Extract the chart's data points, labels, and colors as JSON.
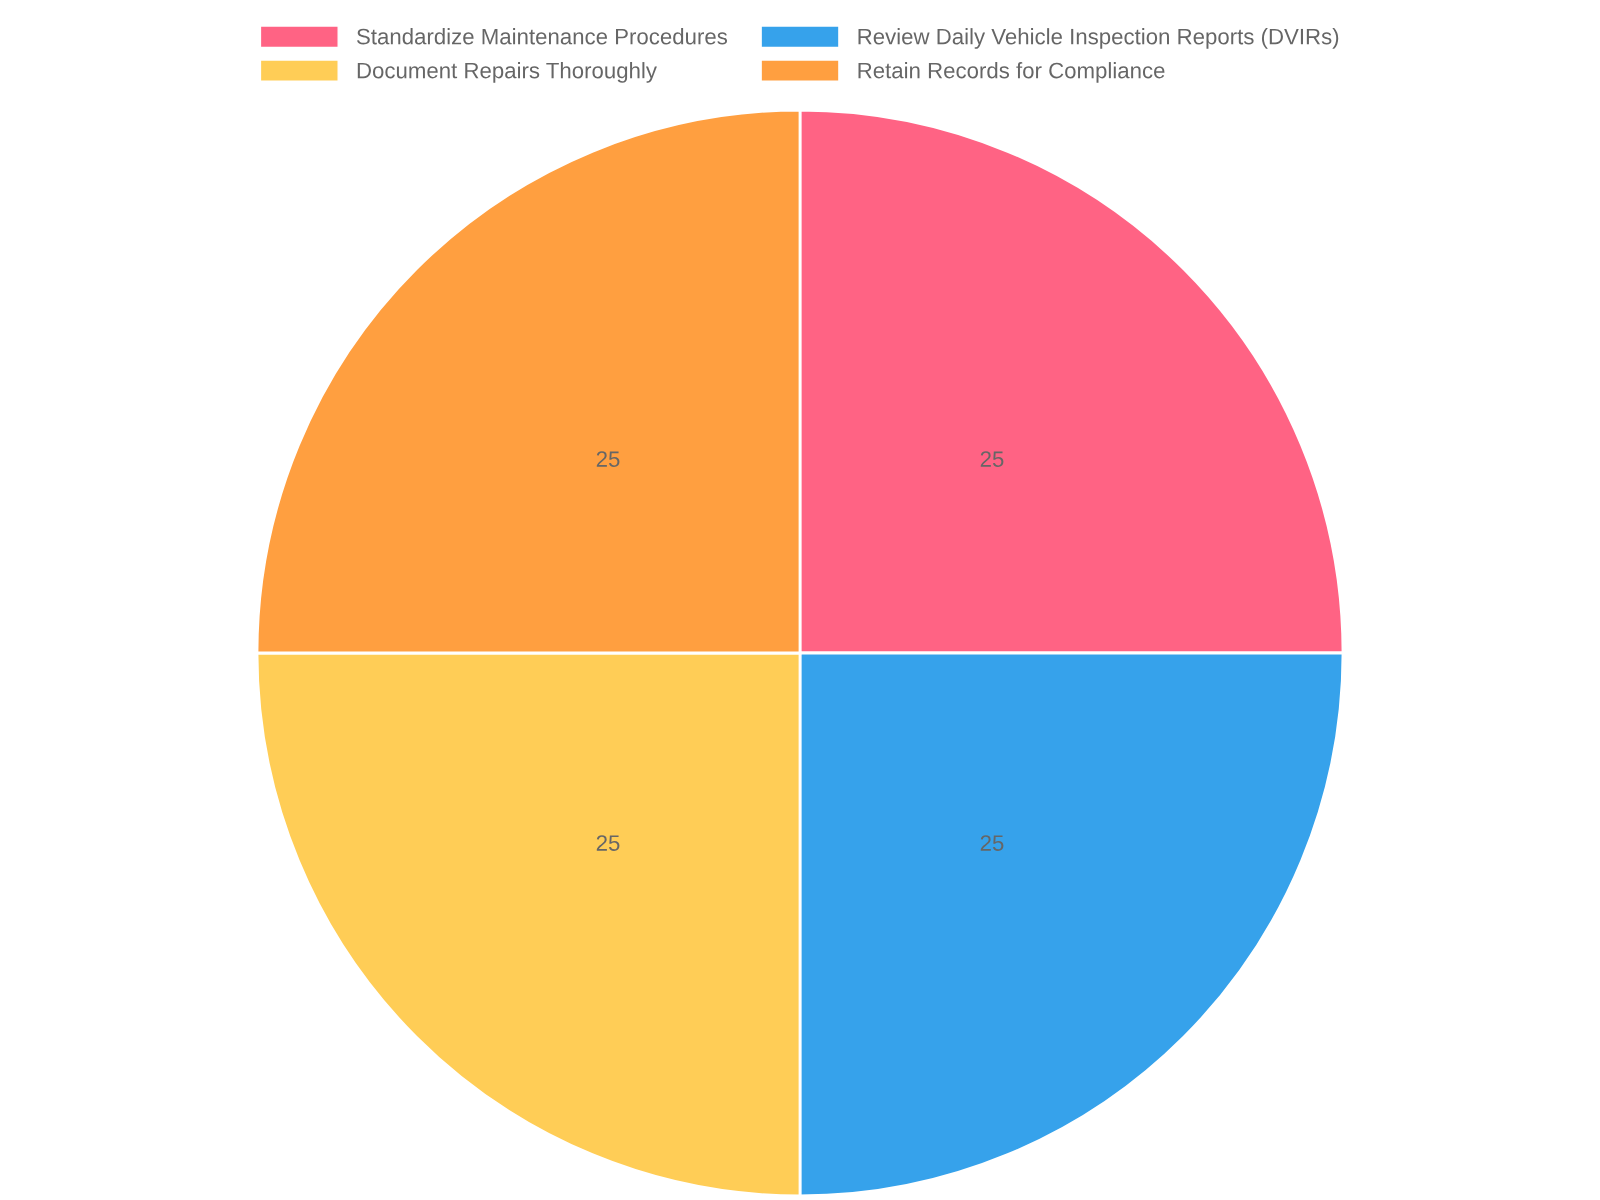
{
  "chart_data": {
    "type": "pie",
    "categories": [
      "Standardize Maintenance Procedures",
      "Review Daily Vehicle Inspection Reports (DVIRs)",
      "Document Repairs Thoroughly",
      "Retain Records for Compliance"
    ],
    "values": [
      25,
      25,
      25,
      25
    ],
    "colors": [
      "#ff6384",
      "#36a2eb",
      "#ffcd56",
      "#ff9f40"
    ],
    "data_labels": true,
    "legend": "top"
  }
}
